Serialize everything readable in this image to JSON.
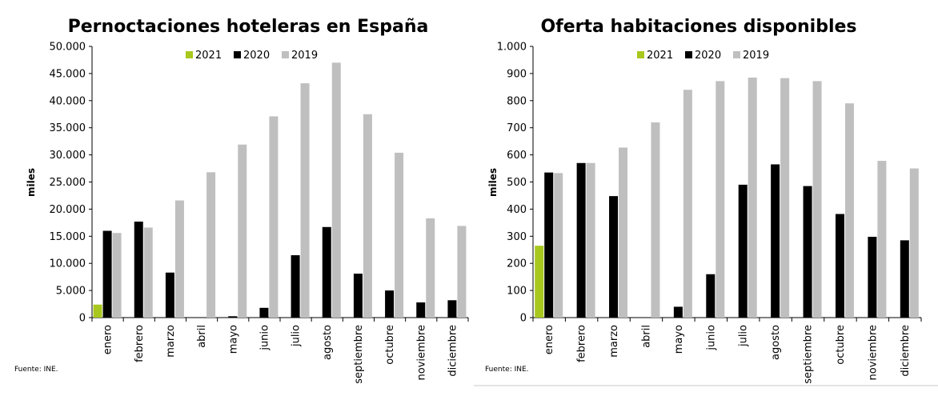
{
  "colors": {
    "2021": "#a8c81e",
    "2020": "#000000",
    "2019": "#bfbfbf",
    "axis": "#000000",
    "border": "#c8c8c8"
  },
  "chart_data": [
    {
      "type": "bar",
      "title": "Pernoctaciones hoteleras en España",
      "xlabel": "",
      "ylabel": "miles",
      "ylim": [
        0,
        50000
      ],
      "yticks": [
        0,
        5000,
        10000,
        15000,
        20000,
        25000,
        30000,
        35000,
        40000,
        45000,
        50000
      ],
      "ytick_labels": [
        "0",
        "5.000",
        "10.000",
        "15.000",
        "20.000",
        "25.000",
        "30.000",
        "35.000",
        "40.000",
        "45.000",
        "50.000"
      ],
      "categories": [
        "enero",
        "febrero",
        "marzo",
        "abril",
        "mayo",
        "junio",
        "julio",
        "agosto",
        "septiembre",
        "octubre",
        "noviembre",
        "diciembre"
      ],
      "legend_position": "top-center",
      "source": "Fuente: INE.",
      "series": [
        {
          "name": "2021",
          "values": [
            2400,
            null,
            null,
            null,
            null,
            null,
            null,
            null,
            null,
            null,
            null,
            null
          ]
        },
        {
          "name": "2020",
          "values": [
            16000,
            17700,
            8300,
            0,
            250,
            1800,
            11500,
            16700,
            8100,
            5000,
            2800,
            3200
          ]
        },
        {
          "name": "2019",
          "values": [
            15600,
            16600,
            21600,
            26800,
            31900,
            37100,
            43200,
            47000,
            37500,
            30400,
            18300,
            16900
          ]
        }
      ]
    },
    {
      "type": "bar",
      "title": "Oferta habitaciones disponibles",
      "xlabel": "",
      "ylabel": "miles",
      "ylim": [
        0,
        1000
      ],
      "yticks": [
        0,
        100,
        200,
        300,
        400,
        500,
        600,
        700,
        800,
        900,
        1000
      ],
      "ytick_labels": [
        "0",
        "100",
        "200",
        "300",
        "400",
        "500",
        "600",
        "700",
        "800",
        "900",
        "1.000"
      ],
      "categories": [
        "enero",
        "febrero",
        "marzo",
        "abril",
        "mayo",
        "junio",
        "julio",
        "agosto",
        "septiembre",
        "octubre",
        "noviembre",
        "diciembre"
      ],
      "legend_position": "top-center",
      "source": "Fuente: INE.",
      "series": [
        {
          "name": "2021",
          "values": [
            265,
            null,
            null,
            null,
            null,
            null,
            null,
            null,
            null,
            null,
            null,
            null
          ]
        },
        {
          "name": "2020",
          "values": [
            535,
            570,
            448,
            0,
            40,
            160,
            490,
            565,
            485,
            382,
            298,
            285
          ]
        },
        {
          "name": "2019",
          "values": [
            533,
            570,
            627,
            720,
            840,
            872,
            885,
            883,
            872,
            790,
            578,
            550
          ]
        }
      ]
    }
  ]
}
